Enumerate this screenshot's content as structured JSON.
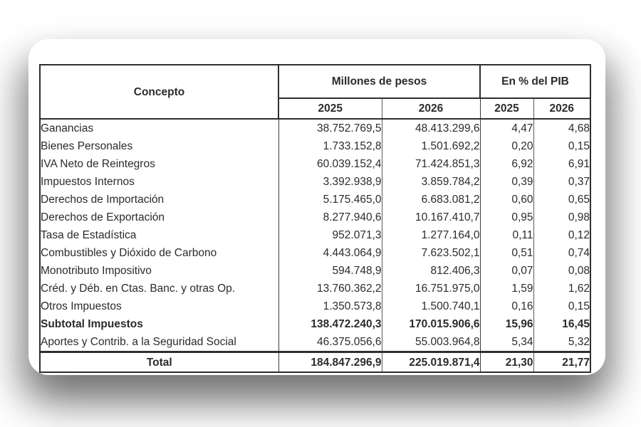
{
  "colors": {
    "card_bg": "#ffffff",
    "border_heavy": "#2e2e2e",
    "border_light": "#5a5a5a",
    "text": "#2b2b2b",
    "shadow": "#5f5f5f"
  },
  "table": {
    "columns": {
      "concepto": "Concepto",
      "group_millones": "Millones de pesos",
      "group_pib": "En % del PIB",
      "year_2025": "2025",
      "year_2026": "2026"
    },
    "rows": [
      {
        "concepto": "Ganancias",
        "millones_2025": "38.752.769,5",
        "millones_2026": "48.413.299,6",
        "pib_2025": "4,47",
        "pib_2026": "4,68",
        "bold": false
      },
      {
        "concepto": "Bienes Personales",
        "millones_2025": "1.733.152,8",
        "millones_2026": "1.501.692,2",
        "pib_2025": "0,20",
        "pib_2026": "0,15",
        "bold": false
      },
      {
        "concepto": "IVA Neto de Reintegros",
        "millones_2025": "60.039.152,4",
        "millones_2026": "71.424.851,3",
        "pib_2025": "6,92",
        "pib_2026": "6,91",
        "bold": false
      },
      {
        "concepto": "Impuestos Internos",
        "millones_2025": "3.392.938,9",
        "millones_2026": "3.859.784,2",
        "pib_2025": "0,39",
        "pib_2026": "0,37",
        "bold": false
      },
      {
        "concepto": "Derechos de Importación",
        "millones_2025": "5.175.465,0",
        "millones_2026": "6.683.081,2",
        "pib_2025": "0,60",
        "pib_2026": "0,65",
        "bold": false
      },
      {
        "concepto": "Derechos de Exportación",
        "millones_2025": "8.277.940,6",
        "millones_2026": "10.167.410,7",
        "pib_2025": "0,95",
        "pib_2026": "0,98",
        "bold": false
      },
      {
        "concepto": "Tasa de Estadística",
        "millones_2025": "952.071,3",
        "millones_2026": "1.277.164,0",
        "pib_2025": "0,11",
        "pib_2026": "0,12",
        "bold": false
      },
      {
        "concepto": "Combustibles y Dióxido de Carbono",
        "millones_2025": "4.443.064,9",
        "millones_2026": "7.623.502,1",
        "pib_2025": "0,51",
        "pib_2026": "0,74",
        "bold": false
      },
      {
        "concepto": "Monotributo Impositivo",
        "millones_2025": "594.748,9",
        "millones_2026": "812.406,3",
        "pib_2025": "0,07",
        "pib_2026": "0,08",
        "bold": false
      },
      {
        "concepto": "Créd. y Déb. en Ctas. Banc. y otras Op.",
        "millones_2025": "13.760.362,2",
        "millones_2026": "16.751.975,0",
        "pib_2025": "1,59",
        "pib_2026": "1,62",
        "bold": false
      },
      {
        "concepto": "Otros Impuestos",
        "millones_2025": "1.350.573,8",
        "millones_2026": "1.500.740,1",
        "pib_2025": "0,16",
        "pib_2026": "0,15",
        "bold": false
      },
      {
        "concepto": "Subtotal Impuestos",
        "millones_2025": "138.472.240,3",
        "millones_2026": "170.015.906,6",
        "pib_2025": "15,96",
        "pib_2026": "16,45",
        "bold": true
      },
      {
        "concepto": "Aportes y Contrib. a la Seguridad Social",
        "millones_2025": "46.375.056,6",
        "millones_2026": "55.003.964,8",
        "pib_2025": "5,34",
        "pib_2026": "5,32",
        "bold": false
      }
    ],
    "total_row": {
      "label": "Total",
      "millones_2025": "184.847.296,9",
      "millones_2026": "225.019.871,4",
      "pib_2025": "21,30",
      "pib_2026": "21,77"
    }
  }
}
